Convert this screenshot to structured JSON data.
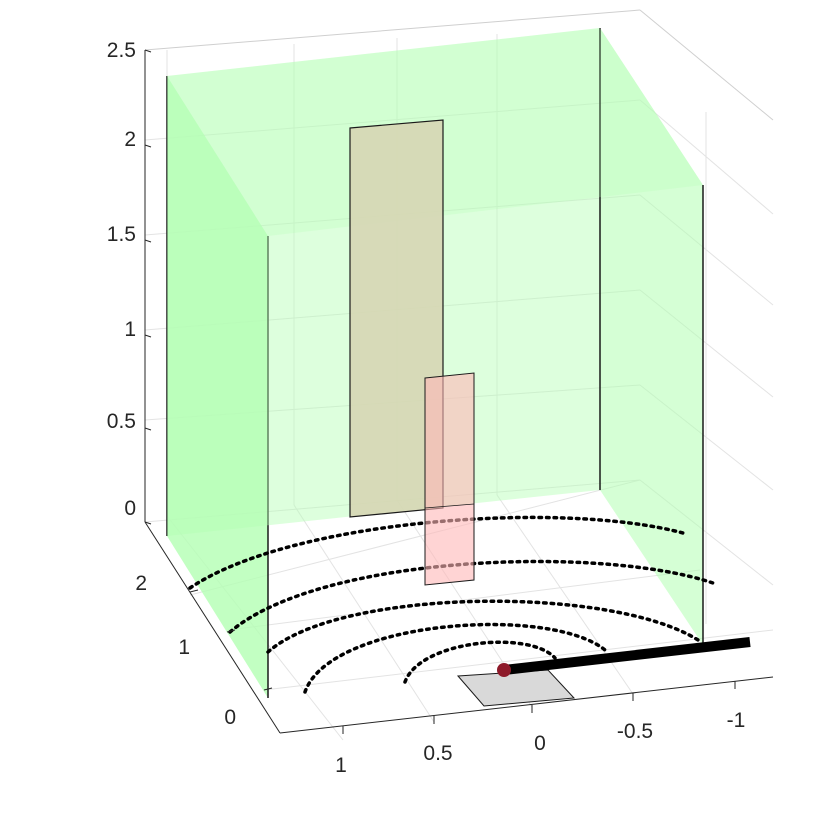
{
  "chart_data": {
    "type": "3d-scene",
    "title": "",
    "xlabel": "",
    "ylabel": "",
    "zlabel": "",
    "grid": true,
    "zlim": [
      0,
      2.5
    ],
    "z_ticks": [
      "2.5",
      "2",
      "1.5",
      "1",
      "0.5",
      "0"
    ],
    "x_ticks": [
      "1",
      "0.5",
      "0",
      "-0.5",
      "-1"
    ],
    "y_ticks": [
      "2",
      "1",
      "0"
    ],
    "colors": {
      "green_wall_fill": "#b3ffb3",
      "tan_panel_fill": "#d6d6b4",
      "pink_panel_fill": "#ffb8b8",
      "floor_square": "#d9d9d9",
      "dot_marker": "#8e1a2a",
      "rod": "#000000",
      "grid": "#e3e3e3",
      "axis": "#262626"
    },
    "elements": [
      {
        "name": "left-green-wall",
        "kind": "translucent-wall",
        "color": "green"
      },
      {
        "name": "back-green-wall",
        "kind": "translucent-wall",
        "color": "green"
      },
      {
        "name": "right-green-wall",
        "kind": "translucent-wall",
        "color": "green"
      },
      {
        "name": "tall-tan-panel",
        "kind": "panel",
        "height": 2.1
      },
      {
        "name": "short-pink-panel",
        "kind": "panel",
        "height": 0.8
      },
      {
        "name": "floor-square",
        "kind": "patch"
      },
      {
        "name": "contour-arcs",
        "kind": "dotted-curves",
        "count": 5
      },
      {
        "name": "rod",
        "kind": "thick-line"
      },
      {
        "name": "dot-marker",
        "kind": "point"
      }
    ]
  }
}
